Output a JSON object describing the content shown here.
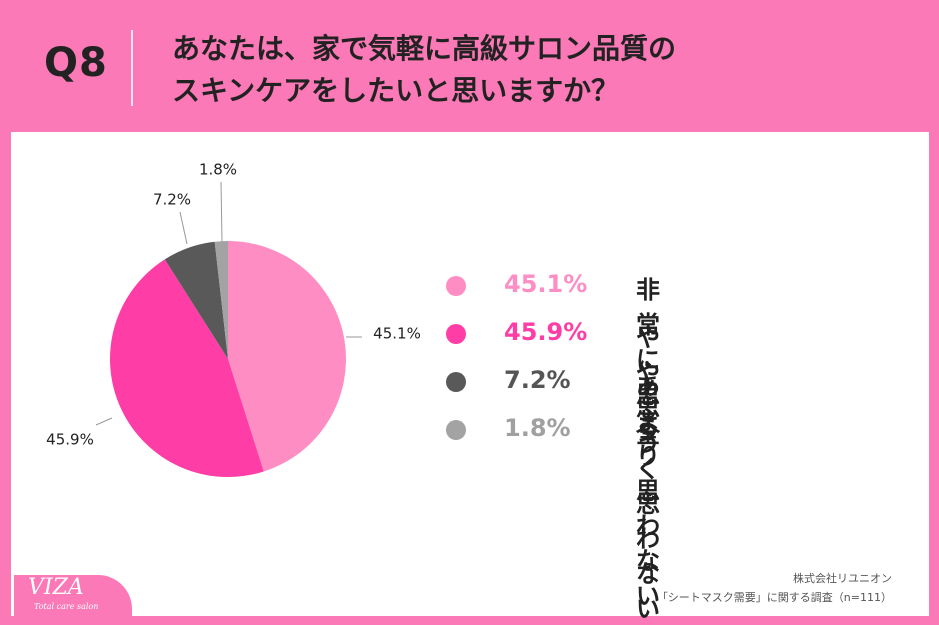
{
  "header": {
    "question_no": "Q8",
    "line1": "あなたは、家で気軽に高級サロン品質の",
    "line2": "スキンケアをしたいと思いますか？"
  },
  "chart_data": {
    "type": "pie",
    "slices": [
      {
        "label": "非常に思う",
        "value": 45.1,
        "display": "45.1%",
        "color": "#fe8dc3"
      },
      {
        "label": "やや思う",
        "value": 45.9,
        "display": "45.9%",
        "color": "#fe3ea6"
      },
      {
        "label": "あまり思わない",
        "value": 7.2,
        "display": "7.2%",
        "color": "#595959"
      },
      {
        "label": "全く思わない",
        "value": 1.8,
        "display": "1.8%",
        "color": "#a3a3a3"
      }
    ],
    "legend_pct_colors": [
      "#fe8dc3",
      "#fe3ea6",
      "#555555",
      "#a0a0a0"
    ],
    "legend_position": "right"
  },
  "footer": {
    "org": "株式会社リユニオン",
    "source": "「シートマスク需要」に関する調査（n=111）"
  },
  "logo": {
    "main": "VIZA",
    "sub": "Total care salon"
  }
}
